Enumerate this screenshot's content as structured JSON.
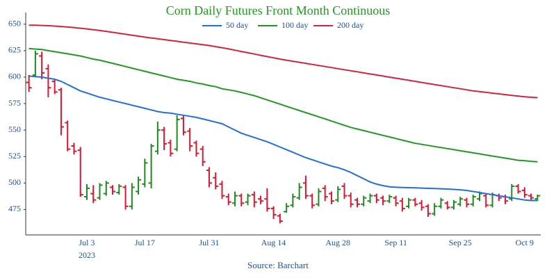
{
  "chart_data": {
    "type": "ohlc",
    "title": "Corn Daily Futures Front Month Continuous",
    "source": "Source: Barchart",
    "year": "2023",
    "categories": [
      null,
      null,
      null,
      null,
      null,
      null,
      null,
      null,
      null,
      "Jul 3",
      null,
      null,
      null,
      null,
      null,
      null,
      null,
      null,
      "Jul 17",
      null,
      null,
      null,
      null,
      null,
      null,
      null,
      null,
      null,
      "Jul 31",
      null,
      null,
      null,
      null,
      null,
      null,
      null,
      null,
      null,
      "Aug 14",
      null,
      null,
      null,
      null,
      null,
      null,
      null,
      null,
      null,
      "Aug 28",
      null,
      null,
      null,
      null,
      null,
      null,
      null,
      null,
      "Sep 11",
      null,
      null,
      null,
      null,
      null,
      null,
      null,
      null,
      null,
      "Sep 25",
      null,
      null,
      null,
      null,
      null,
      null,
      null,
      null,
      null,
      "Oct 9",
      null,
      null
    ],
    "open": [
      595,
      602,
      620,
      608,
      596,
      588,
      557,
      535,
      531,
      487,
      490,
      486,
      490,
      496,
      491,
      496,
      478,
      492,
      499,
      500,
      530,
      550,
      538,
      532,
      561,
      549,
      538,
      532,
      512,
      505,
      499,
      487,
      481,
      488,
      482,
      489,
      485,
      485,
      476,
      469,
      473,
      479,
      486,
      500,
      488,
      480,
      495,
      490,
      484,
      497,
      488,
      484,
      480,
      483,
      488,
      486,
      483,
      486,
      483,
      478,
      484,
      481,
      478,
      471,
      478,
      481,
      477,
      480,
      484,
      480,
      485,
      488,
      479,
      488,
      487,
      485,
      497,
      493,
      488,
      485
    ],
    "high": [
      602,
      625,
      624,
      612,
      598,
      590,
      559,
      538,
      534,
      499,
      498,
      500,
      502,
      498,
      499,
      498,
      500,
      506,
      523,
      537,
      558,
      553,
      541,
      564,
      564,
      552,
      540,
      535,
      515,
      510,
      502,
      490,
      492,
      490,
      490,
      492,
      488,
      495,
      478,
      471,
      481,
      490,
      500,
      507,
      490,
      495,
      498,
      492,
      497,
      500,
      491,
      486,
      488,
      490,
      490,
      488,
      489,
      488,
      486,
      486,
      486,
      484,
      480,
      481,
      486,
      483,
      484,
      487,
      486,
      489,
      492,
      490,
      491,
      490,
      489,
      499,
      499,
      496,
      490,
      489
    ],
    "low": [
      586,
      600,
      598,
      581,
      584,
      545,
      530,
      527,
      487,
      484,
      481,
      484,
      488,
      489,
      489,
      475,
      475,
      489,
      496,
      495,
      527,
      531,
      525,
      530,
      545,
      530,
      525,
      516,
      496,
      494,
      485,
      479,
      478,
      478,
      479,
      477,
      480,
      473,
      466,
      462,
      472,
      477,
      484,
      485,
      476,
      478,
      483,
      480,
      482,
      485,
      477,
      477,
      478,
      481,
      481,
      479,
      481,
      478,
      473,
      476,
      478,
      474,
      468,
      469,
      476,
      475,
      475,
      478,
      477,
      478,
      483,
      477,
      477,
      483,
      480,
      483,
      490,
      486,
      484,
      483
    ],
    "close": [
      590,
      622,
      604,
      590,
      586,
      553,
      532,
      530,
      489,
      495,
      484,
      498,
      500,
      492,
      497,
      478,
      496,
      503,
      519,
      535,
      550,
      537,
      528,
      560,
      548,
      535,
      528,
      520,
      500,
      497,
      488,
      482,
      488,
      481,
      488,
      482,
      483,
      476,
      470,
      464,
      478,
      487,
      496,
      488,
      479,
      492,
      487,
      483,
      494,
      488,
      480,
      480,
      486,
      488,
      484,
      483,
      487,
      481,
      476,
      484,
      480,
      477,
      471,
      478,
      484,
      477,
      482,
      485,
      480,
      487,
      490,
      479,
      489,
      486,
      483,
      497,
      492,
      489,
      486,
      488
    ],
    "up_color": "#1f8a1f",
    "down_color": "#e0142d",
    "series": [
      {
        "name": "50 day",
        "color": "#1f6fdc",
        "values": [
          601,
          600.5,
          600,
          599,
          598,
          596,
          593,
          590,
          587,
          585,
          583,
          581,
          579.5,
          578,
          576.5,
          575,
          573.5,
          572,
          570.5,
          569,
          567.5,
          566.5,
          566,
          565,
          564,
          563,
          562,
          560.5,
          559,
          557.5,
          556,
          553,
          550,
          547,
          545,
          543,
          541,
          539,
          536.5,
          534,
          531.5,
          529,
          526.5,
          524,
          522,
          520,
          518,
          516,
          514.5,
          512.5,
          510,
          507,
          504,
          501,
          499,
          497.5,
          496.5,
          496,
          495.8,
          495.6,
          495.4,
          495.2,
          495,
          494.8,
          494.6,
          494.3,
          494,
          493.6,
          493,
          492,
          491,
          490,
          489,
          488,
          487,
          486,
          485,
          484,
          483.5,
          483.5
        ]
      },
      {
        "name": "100 day",
        "color": "#1f9a1f",
        "values": [
          627,
          626.5,
          626,
          625,
          624,
          623,
          622,
          621,
          620,
          618.5,
          617,
          616,
          614.5,
          613,
          611.5,
          610,
          608.5,
          607,
          605.5,
          604,
          602.5,
          601,
          599.5,
          598,
          597,
          596,
          594.5,
          593.5,
          592,
          591,
          589,
          588,
          587,
          585.5,
          584,
          582.5,
          580.5,
          578.5,
          576.5,
          574.5,
          572.5,
          570.5,
          568.5,
          566.5,
          564.5,
          562.5,
          560.5,
          558.5,
          556.5,
          554.5,
          552.5,
          551,
          549.5,
          548,
          546.5,
          545,
          543.5,
          542,
          540.5,
          539,
          537.5,
          536.5,
          535.5,
          534.5,
          533.5,
          532.5,
          531.5,
          530.5,
          529.5,
          528.5,
          527.5,
          526.5,
          525.5,
          524.5,
          523.5,
          522.5,
          521.5,
          521,
          520.5,
          520
        ]
      },
      {
        "name": "200 day",
        "color": "#d6213f",
        "values": [
          649,
          649,
          648.8,
          648.5,
          648.2,
          647.8,
          647.3,
          646.8,
          646.2,
          645.5,
          644.8,
          644,
          643.2,
          642.3,
          641.4,
          640.5,
          639.6,
          638.7,
          637.8,
          637,
          636.2,
          635.4,
          634.6,
          633.8,
          633,
          632.2,
          631.4,
          630.6,
          629.8,
          628.8,
          627.8,
          626.6,
          625.4,
          624.2,
          623,
          621.8,
          620.6,
          619.4,
          618.2,
          617,
          616,
          615,
          614,
          613,
          612,
          611,
          610,
          609,
          608,
          607,
          606,
          605,
          604,
          603,
          602,
          601,
          600,
          599,
          598,
          597,
          596,
          595,
          594,
          593,
          592,
          591,
          590,
          589,
          588,
          587,
          586.3,
          585.6,
          584.9,
          584.2,
          583.5,
          582.8,
          582.1,
          581.4,
          581,
          580.6
        ]
      }
    ],
    "ylim": [
      451,
      661
    ],
    "yticks": [
      475,
      500,
      525,
      550,
      575,
      600,
      625,
      650
    ],
    "grid": false
  }
}
